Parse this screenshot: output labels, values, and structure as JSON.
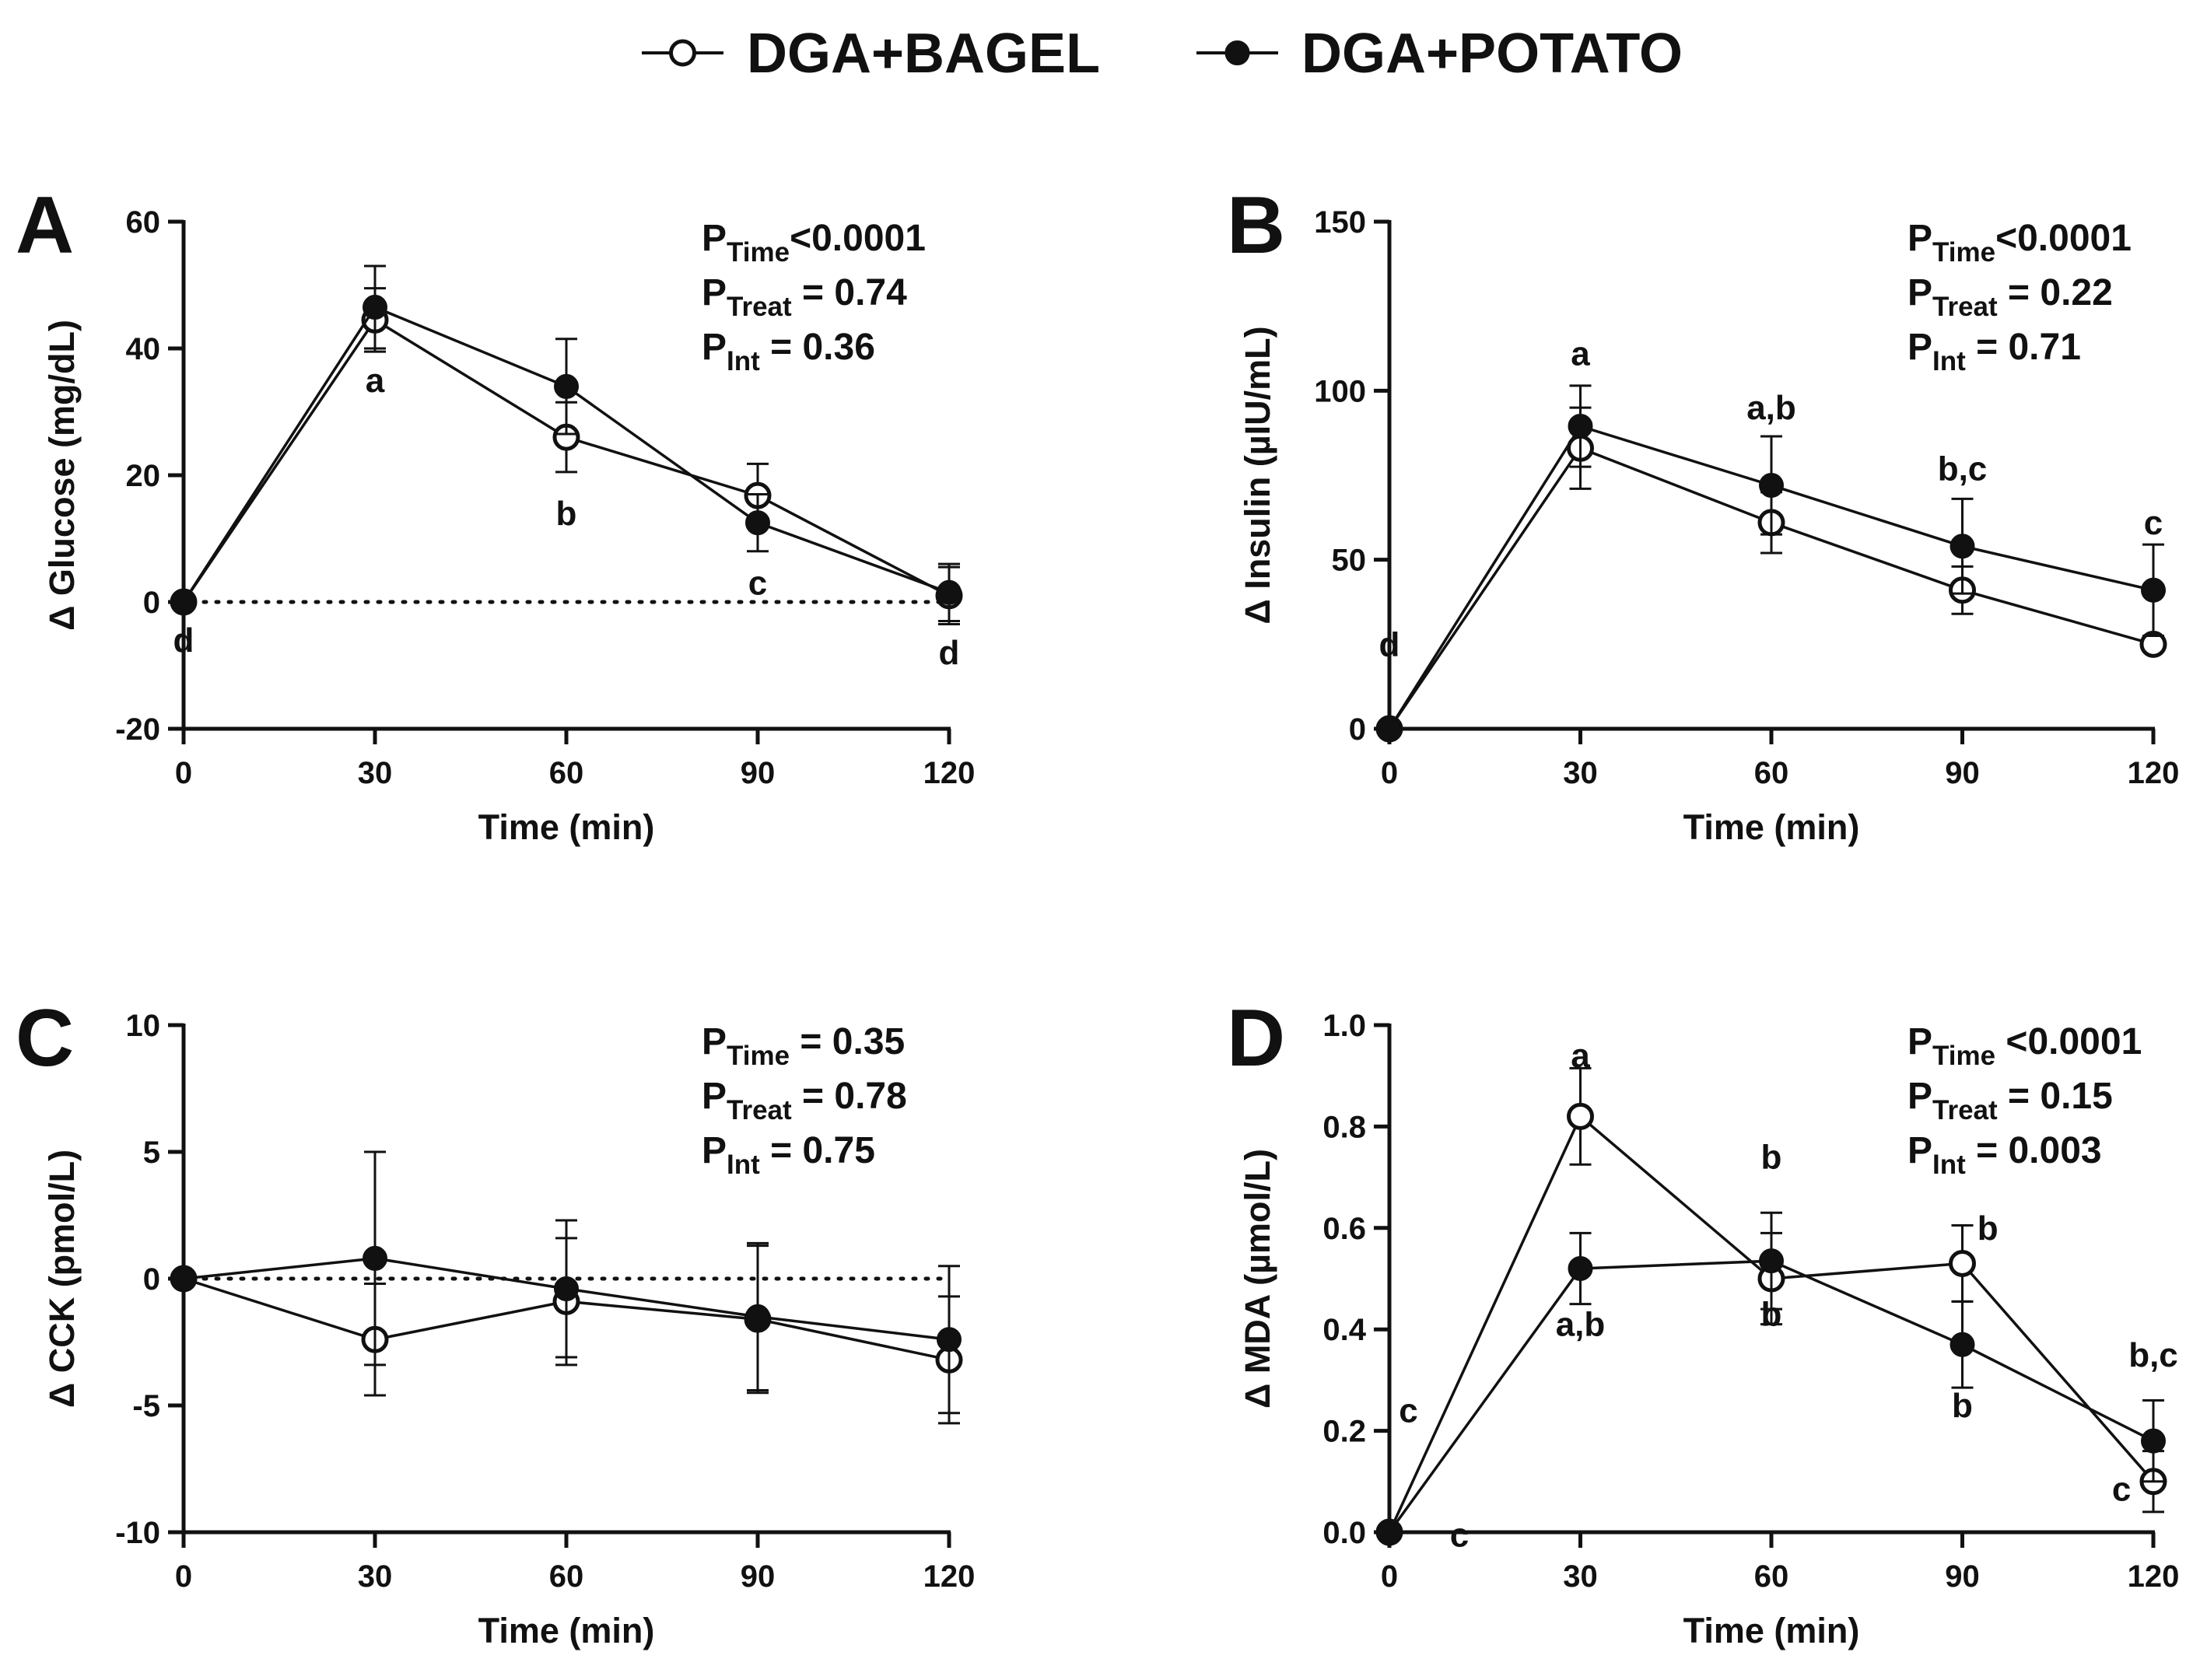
{
  "legend": {
    "entries": [
      {
        "name": "DGA+BAGEL",
        "marker": "open-circle"
      },
      {
        "name": "DGA+POTATO",
        "marker": "filled-circle"
      }
    ]
  },
  "colors": {
    "ink": "#111111",
    "background": "#ffffff"
  },
  "chart_data": [
    {
      "type": "line",
      "panel": "A",
      "ylabel": "Δ Glucose (mg/dL)",
      "xlabel": "Time (min)",
      "x": [
        0,
        30,
        60,
        90,
        120
      ],
      "xticks": [
        "0",
        "30",
        "60",
        "90",
        "120"
      ],
      "ylim": [
        -20,
        60
      ],
      "yticks": [
        -20,
        0,
        20,
        40,
        60
      ],
      "zero_line": true,
      "series": [
        {
          "name": "DGA+BAGEL",
          "values": [
            0,
            44.5,
            26,
            16.8,
            1
          ],
          "errors": [
            0,
            5,
            5.5,
            5,
            4.5
          ]
        },
        {
          "name": "DGA+POTATO",
          "values": [
            0,
            46.5,
            34,
            12.5,
            1.5
          ],
          "errors": [
            0,
            6.5,
            7.5,
            4.5,
            4.5
          ]
        }
      ],
      "stats": [
        {
          "p": "P",
          "sub": "Time",
          "text": "<0.0001"
        },
        {
          "p": "P",
          "sub": "Treat",
          "text": " = 0.74"
        },
        {
          "p": "P",
          "sub": "Int",
          "text": " = 0.36"
        }
      ],
      "annotations": [
        {
          "text": "d",
          "x": 0,
          "y": -6
        },
        {
          "text": "a",
          "x": 30,
          "y": 35
        },
        {
          "text": "b",
          "x": 60,
          "y": 14
        },
        {
          "text": "c",
          "x": 90,
          "y": 3
        },
        {
          "text": "d",
          "x": 120,
          "y": -8
        }
      ]
    },
    {
      "type": "line",
      "panel": "B",
      "ylabel": "Δ Insulin (µIU/mL)",
      "xlabel": "Time (min)",
      "x": [
        0,
        30,
        60,
        90,
        120
      ],
      "xticks": [
        "0",
        "30",
        "60",
        "90",
        "120"
      ],
      "ylim": [
        0,
        150
      ],
      "yticks": [
        0,
        50,
        100,
        150
      ],
      "zero_line": false,
      "series": [
        {
          "name": "DGA+BAGEL",
          "values": [
            0,
            83,
            61,
            41,
            25
          ],
          "errors": [
            0,
            12,
            9,
            7,
            2
          ]
        },
        {
          "name": "DGA+POTATO",
          "values": [
            0,
            89.5,
            72,
            54,
            41
          ],
          "errors": [
            0,
            12,
            14.5,
            14,
            13.5
          ]
        }
      ],
      "stats": [
        {
          "p": "P",
          "sub": "Time",
          "text": "<0.0001"
        },
        {
          "p": "P",
          "sub": "Treat",
          "text": " = 0.22"
        },
        {
          "p": "P",
          "sub": "Int",
          "text": " = 0.71"
        }
      ],
      "annotations": [
        {
          "text": "d",
          "x": 0,
          "y": 25
        },
        {
          "text": "a",
          "x": 30,
          "y": 111
        },
        {
          "text": "a,b",
          "x": 60,
          "y": 95
        },
        {
          "text": "b,c",
          "x": 90,
          "y": 77
        },
        {
          "text": "c",
          "x": 120,
          "y": 61
        }
      ]
    },
    {
      "type": "line",
      "panel": "C",
      "ylabel": "Δ CCK (pmol/L)",
      "xlabel": "Time (min)",
      "x": [
        0,
        30,
        60,
        90,
        120
      ],
      "xticks": [
        "0",
        "30",
        "60",
        "90",
        "120"
      ],
      "ylim": [
        -10,
        10
      ],
      "yticks": [
        -10,
        -5,
        0,
        5,
        10
      ],
      "zero_line": true,
      "series": [
        {
          "name": "DGA+BAGEL",
          "values": [
            0,
            -2.4,
            -0.9,
            -1.6,
            -3.2
          ],
          "errors": [
            0,
            2.2,
            2.5,
            2.9,
            2.5
          ]
        },
        {
          "name": "DGA+POTATO",
          "values": [
            0,
            0.8,
            -0.4,
            -1.5,
            -2.4
          ],
          "errors": [
            0,
            4.2,
            2.7,
            2.9,
            2.9
          ]
        }
      ],
      "stats": [
        {
          "p": "P",
          "sub": "Time",
          "text": " = 0.35"
        },
        {
          "p": "P",
          "sub": "Treat",
          "text": " = 0.78"
        },
        {
          "p": "P",
          "sub": "Int",
          "text": " = 0.75"
        }
      ],
      "annotations": []
    },
    {
      "type": "line",
      "panel": "D",
      "ylabel": "Δ MDA (µmol/L)",
      "xlabel": "Time (min)",
      "x": [
        0,
        30,
        60,
        90,
        120
      ],
      "xticks": [
        "0",
        "30",
        "60",
        "90",
        "120"
      ],
      "ylim": [
        0,
        1.0
      ],
      "yticks": [
        "0.0",
        "0.2",
        "0.4",
        "0.6",
        "0.8",
        "1.0"
      ],
      "zero_line": false,
      "series": [
        {
          "name": "DGA+BAGEL",
          "values": [
            0,
            0.82,
            0.5,
            0.53,
            0.1
          ],
          "errors": [
            0,
            0.095,
            0.09,
            0.075,
            0.06
          ]
        },
        {
          "name": "DGA+POTATO",
          "values": [
            0,
            0.52,
            0.535,
            0.37,
            0.18
          ],
          "errors": [
            0,
            0.07,
            0.095,
            0.085,
            0.08
          ]
        }
      ],
      "stats": [
        {
          "p": "P",
          "sub": "Time",
          "text": " <0.0001"
        },
        {
          "p": "P",
          "sub": "Treat",
          "text": " = 0.15"
        },
        {
          "p": "P",
          "sub": "Int",
          "text": " = 0.003"
        }
      ],
      "annotations": [
        {
          "text": "c",
          "x": 3,
          "y": 0.24
        },
        {
          "text": "c",
          "x": 11,
          "y": -0.005
        },
        {
          "text": "a",
          "x": 30,
          "y": 0.94
        },
        {
          "text": "a,b",
          "x": 30,
          "y": 0.41
        },
        {
          "text": "b",
          "x": 60,
          "y": 0.74
        },
        {
          "text": "b",
          "x": 60,
          "y": 0.43
        },
        {
          "text": "b",
          "x": 94,
          "y": 0.6
        },
        {
          "text": "b",
          "x": 90,
          "y": 0.25
        },
        {
          "text": "b,c",
          "x": 120,
          "y": 0.35
        },
        {
          "text": "c",
          "x": 115,
          "y": 0.085
        }
      ]
    }
  ]
}
